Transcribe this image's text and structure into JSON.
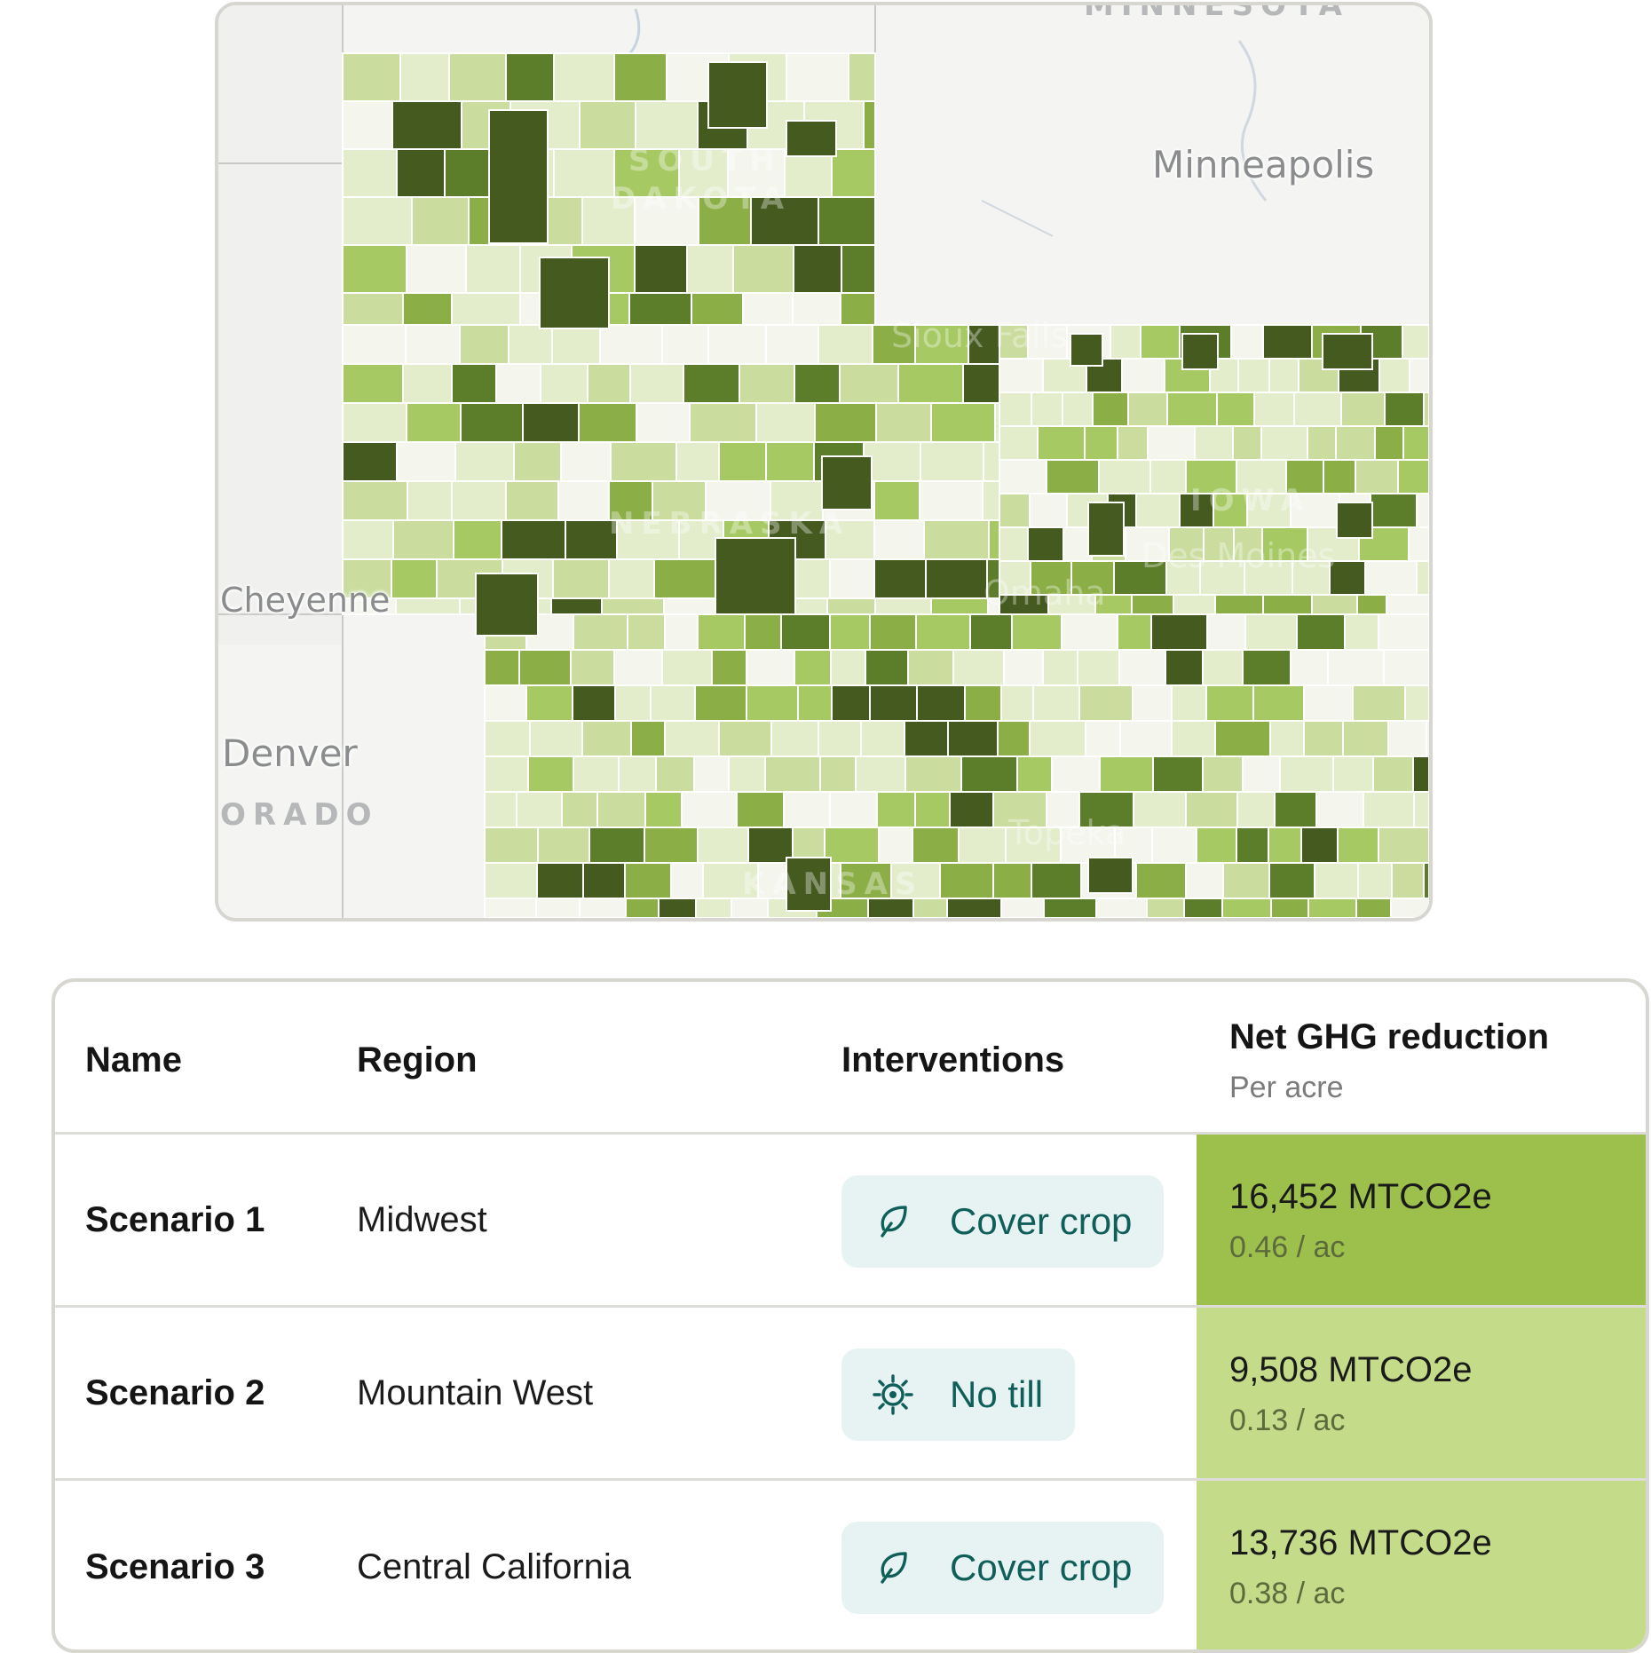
{
  "map": {
    "cities": [
      {
        "id": "minneapolis",
        "label": "Minneapolis"
      },
      {
        "id": "cheyenne",
        "label": "Cheyenne"
      },
      {
        "id": "denver",
        "label": "Denver"
      },
      {
        "id": "sioux_falls",
        "label": "Sioux Falls"
      },
      {
        "id": "omaha",
        "label": "Omaha"
      },
      {
        "id": "des_moines",
        "label": "Des Moines"
      },
      {
        "id": "topeka",
        "label": "Topeka"
      }
    ],
    "states": [
      {
        "id": "minnesota",
        "label": "MINNESOTA"
      },
      {
        "id": "south",
        "label": "SOUTH"
      },
      {
        "id": "dakota",
        "label": "DAKOTA"
      },
      {
        "id": "nebraska",
        "label": "NEBRASKA"
      },
      {
        "id": "iowa",
        "label": "IOWA"
      },
      {
        "id": "colorado",
        "label": "ORADO"
      },
      {
        "id": "kansas",
        "label": "KANSAS"
      }
    ],
    "palette": [
      "#f4f6ee",
      "#e3edcc",
      "#cadd9e",
      "#a7c964",
      "#8bae46",
      "#5c7d2a",
      "#445a1f"
    ]
  },
  "table": {
    "headers": {
      "name": "Name",
      "region": "Region",
      "interventions": "Interventions",
      "ghg": "Net GHG reduction",
      "ghg_sub": "Per acre"
    },
    "rows": [
      {
        "name": "Scenario 1",
        "region": "Midwest",
        "intervention": "Cover crop",
        "icon": "leaf-icon",
        "ghg": "16,452 MTCO2e",
        "per_acre": "0.46 / ac",
        "color": "#9dc04d"
      },
      {
        "name": "Scenario 2",
        "region": "Mountain West",
        "intervention": "No till",
        "icon": "gear-sun-icon",
        "ghg": "9,508 MTCO2e",
        "per_acre": "0.13 / ac",
        "color": "#c4db8a"
      },
      {
        "name": "Scenario 3",
        "region": "Central California",
        "intervention": "Cover crop",
        "icon": "leaf-icon",
        "ghg": "13,736 MTCO2e",
        "per_acre": "0.38 / ac",
        "color": "#c4db8a"
      }
    ]
  }
}
